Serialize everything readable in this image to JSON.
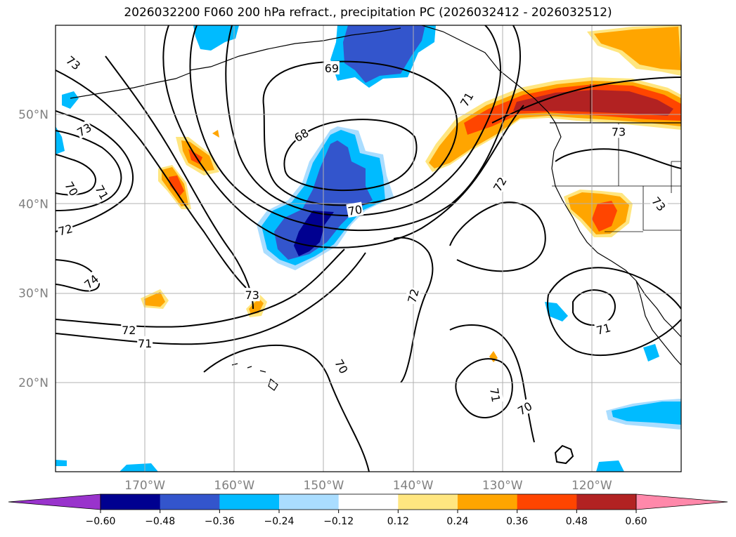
{
  "title": "2026032200 F060 200 hPa refract., precipitation PC (2026032412 - 2026032512)",
  "map": {
    "lon_range": [
      -180,
      -110
    ],
    "lat_range": [
      10,
      60
    ],
    "lat_ticks": [
      {
        "value": 50,
        "label": "50°N"
      },
      {
        "value": 40,
        "label": "40°N"
      },
      {
        "value": 30,
        "label": "30°N"
      },
      {
        "value": 20,
        "label": "20°N"
      }
    ],
    "lon_ticks": [
      {
        "value": -170,
        "label": "170°W"
      },
      {
        "value": -160,
        "label": "160°W"
      },
      {
        "value": -150,
        "label": "150°W"
      },
      {
        "value": -140,
        "label": "140°W"
      },
      {
        "value": -130,
        "label": "130°W"
      },
      {
        "value": -120,
        "label": "120°W"
      }
    ],
    "contour_labels": [
      {
        "text": "73",
        "lon": -178,
        "lat": 55.8,
        "rot": 40
      },
      {
        "text": "73",
        "lon": -176.8,
        "lat": 48.3,
        "rot": -30
      },
      {
        "text": "70",
        "lon": -178.2,
        "lat": 41.7,
        "rot": 60
      },
      {
        "text": "71",
        "lon": -174.8,
        "lat": 41.3,
        "rot": 60
      },
      {
        "text": "72",
        "lon": -178.9,
        "lat": 37.1,
        "rot": -15
      },
      {
        "text": "74",
        "lon": -176,
        "lat": 31.3,
        "rot": -40
      },
      {
        "text": "69",
        "lon": -149.1,
        "lat": 55.2,
        "rot": 0
      },
      {
        "text": "68",
        "lon": -152.5,
        "lat": 47.7,
        "rot": -30
      },
      {
        "text": "70",
        "lon": -146.5,
        "lat": 39.3,
        "rot": -10
      },
      {
        "text": "73",
        "lon": -158,
        "lat": 29.8,
        "rot": 0
      },
      {
        "text": "72",
        "lon": -171.8,
        "lat": 25.9,
        "rot": 0
      },
      {
        "text": "71",
        "lon": -170,
        "lat": 24.4,
        "rot": 0
      },
      {
        "text": "70",
        "lon": -148,
        "lat": 21.8,
        "rot": 60
      },
      {
        "text": "72",
        "lon": -140,
        "lat": 29.7,
        "rot": -75
      },
      {
        "text": "71",
        "lon": -134,
        "lat": 51.7,
        "rot": -60
      },
      {
        "text": "72",
        "lon": -130.3,
        "lat": 42.2,
        "rot": -60
      },
      {
        "text": "73",
        "lon": -117,
        "lat": 48.1,
        "rot": 0
      },
      {
        "text": "73",
        "lon": -112.5,
        "lat": 40,
        "rot": 50
      },
      {
        "text": "71",
        "lon": -130.8,
        "lat": 18.6,
        "rot": 80
      },
      {
        "text": "70",
        "lon": -127.5,
        "lat": 17.1,
        "rot": -30
      },
      {
        "text": "71",
        "lon": -118.7,
        "lat": 26,
        "rot": -15
      }
    ]
  },
  "colorbar": {
    "levels": [
      "-0.60",
      "-0.48",
      "-0.36",
      "-0.24",
      "-0.12",
      "0.12",
      "0.24",
      "0.36",
      "0.48",
      "0.60"
    ],
    "under_color": "#9933cc",
    "over_color": "#ff88aa",
    "colors": [
      "#000090",
      "#3355cc",
      "#00bbff",
      "#aaddff",
      "#ffffff",
      "#ffe680",
      "#ffa500",
      "#ff4500",
      "#b22222"
    ]
  }
}
